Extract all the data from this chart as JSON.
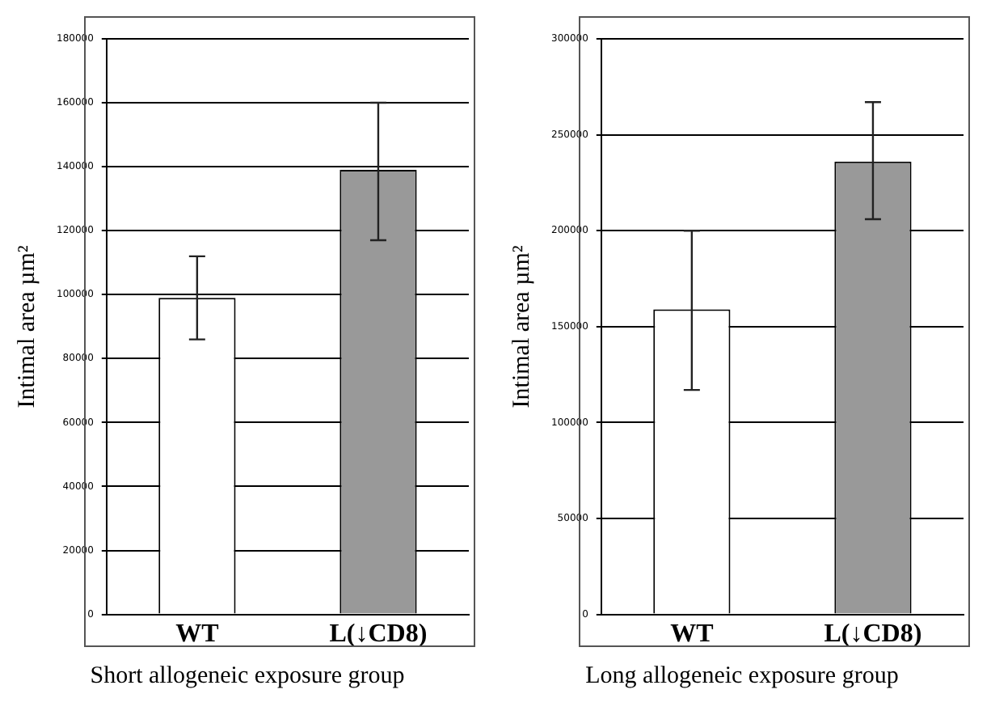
{
  "chart_data": [
    {
      "type": "bar",
      "ylabel": "Intimal area µm²",
      "xlabel": "Short allogeneic exposure group",
      "categories": [
        "WT",
        "L(↓CD8)"
      ],
      "values": [
        99000,
        139000
      ],
      "colors": [
        "#ffffff",
        "#999999"
      ],
      "errors": [
        [
          86000,
          112000
        ],
        [
          117000,
          160000
        ]
      ],
      "ylim": [
        0,
        180000
      ],
      "yticks": [
        0,
        20000,
        40000,
        60000,
        80000,
        100000,
        120000,
        140000,
        160000,
        180000
      ],
      "grid": "y"
    },
    {
      "type": "bar",
      "ylabel": "Intimal area µm²",
      "xlabel": "Long allogeneic exposure group",
      "categories": [
        "WT",
        "L(↓CD8)"
      ],
      "values": [
        159000,
        236000
      ],
      "colors": [
        "#ffffff",
        "#999999"
      ],
      "errors": [
        [
          117000,
          200000
        ],
        [
          206000,
          267000
        ]
      ],
      "ylim": [
        0,
        300000
      ],
      "yticks": [
        0,
        50000,
        100000,
        150000,
        200000,
        250000,
        300000
      ],
      "grid": "y"
    }
  ]
}
